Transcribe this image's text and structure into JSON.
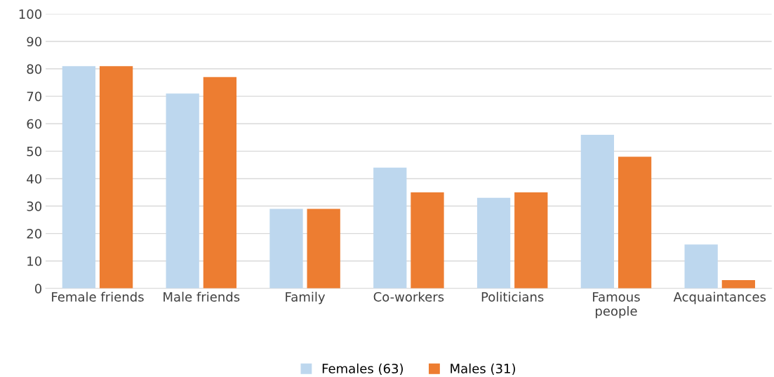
{
  "chart_data": {
    "type": "bar",
    "categories": [
      "Female friends",
      "Male friends",
      "Family",
      "Co-workers",
      "Politicians",
      "Famous\npeople",
      "Acquaintances"
    ],
    "series": [
      {
        "name": "Females (63)",
        "color": "#bdd7ee",
        "values": [
          81,
          71,
          29,
          44,
          33,
          56,
          16
        ]
      },
      {
        "name": "Males (31)",
        "color": "#ed7d31",
        "values": [
          81,
          77,
          29,
          35,
          35,
          48,
          3
        ]
      }
    ],
    "ylim": [
      0,
      100
    ],
    "yticks": [
      0,
      10,
      20,
      30,
      40,
      50,
      60,
      70,
      80,
      90,
      100
    ],
    "grid": "y",
    "legend": "bottom"
  }
}
